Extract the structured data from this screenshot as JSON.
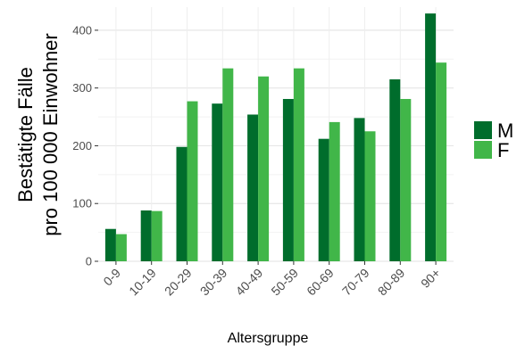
{
  "chart_data": {
    "type": "bar",
    "title": "",
    "xlabel": "Altersgruppe",
    "ylabel_line1": "Bestätigte Fälle",
    "ylabel_line2": "pro 100 000 Einwohner",
    "ylim": [
      0,
      440
    ],
    "yticks": [
      0,
      100,
      200,
      300,
      400
    ],
    "grid": true,
    "legend_position": "right",
    "categories": [
      "0-9",
      "10-19",
      "20-29",
      "30-39",
      "40-49",
      "50-59",
      "60-69",
      "70-79",
      "80-89",
      "90+"
    ],
    "series": [
      {
        "name": "M",
        "color": "#006d2c",
        "values": [
          56,
          88,
          198,
          273,
          254,
          281,
          212,
          248,
          315,
          429
        ]
      },
      {
        "name": "F",
        "color": "#41b649",
        "values": [
          47,
          87,
          277,
          334,
          320,
          334,
          241,
          225,
          281,
          344
        ]
      }
    ]
  }
}
